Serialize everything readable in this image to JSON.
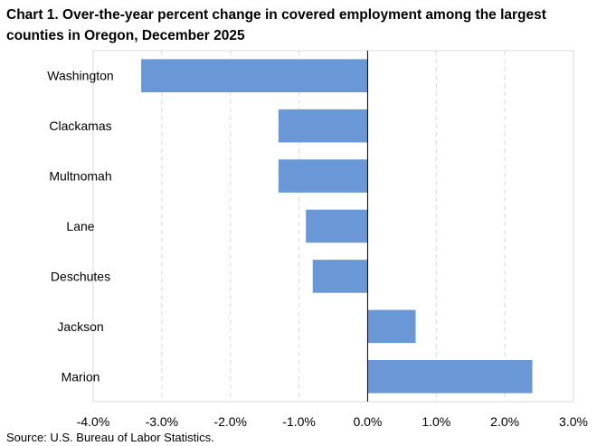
{
  "chart_data": {
    "type": "bar",
    "orientation": "horizontal",
    "title": "Chart 1. Over-the-year percent change in covered employment among the largest counties in Oregon, December 2025",
    "categories": [
      "Washington",
      "Clackamas",
      "Multnomah",
      "Lane",
      "Deschutes",
      "Jackson",
      "Marion"
    ],
    "values": [
      -3.3,
      -1.3,
      -1.3,
      -0.9,
      -0.8,
      0.7,
      2.4
    ],
    "xlim": [
      -4.0,
      3.0
    ],
    "ticks": [
      -4.0,
      -3.0,
      -2.0,
      -1.0,
      0.0,
      1.0,
      2.0,
      3.0
    ],
    "tick_labels": [
      "-4.0%",
      "-3.0%",
      "-2.0%",
      "-1.0%",
      "0.0%",
      "1.0%",
      "2.0%",
      "3.0%"
    ],
    "xlabel": "",
    "ylabel": "",
    "grid": true,
    "bar_color": "#6a97d6",
    "source": "Source: U.S. Bureau of Labor Statistics."
  }
}
